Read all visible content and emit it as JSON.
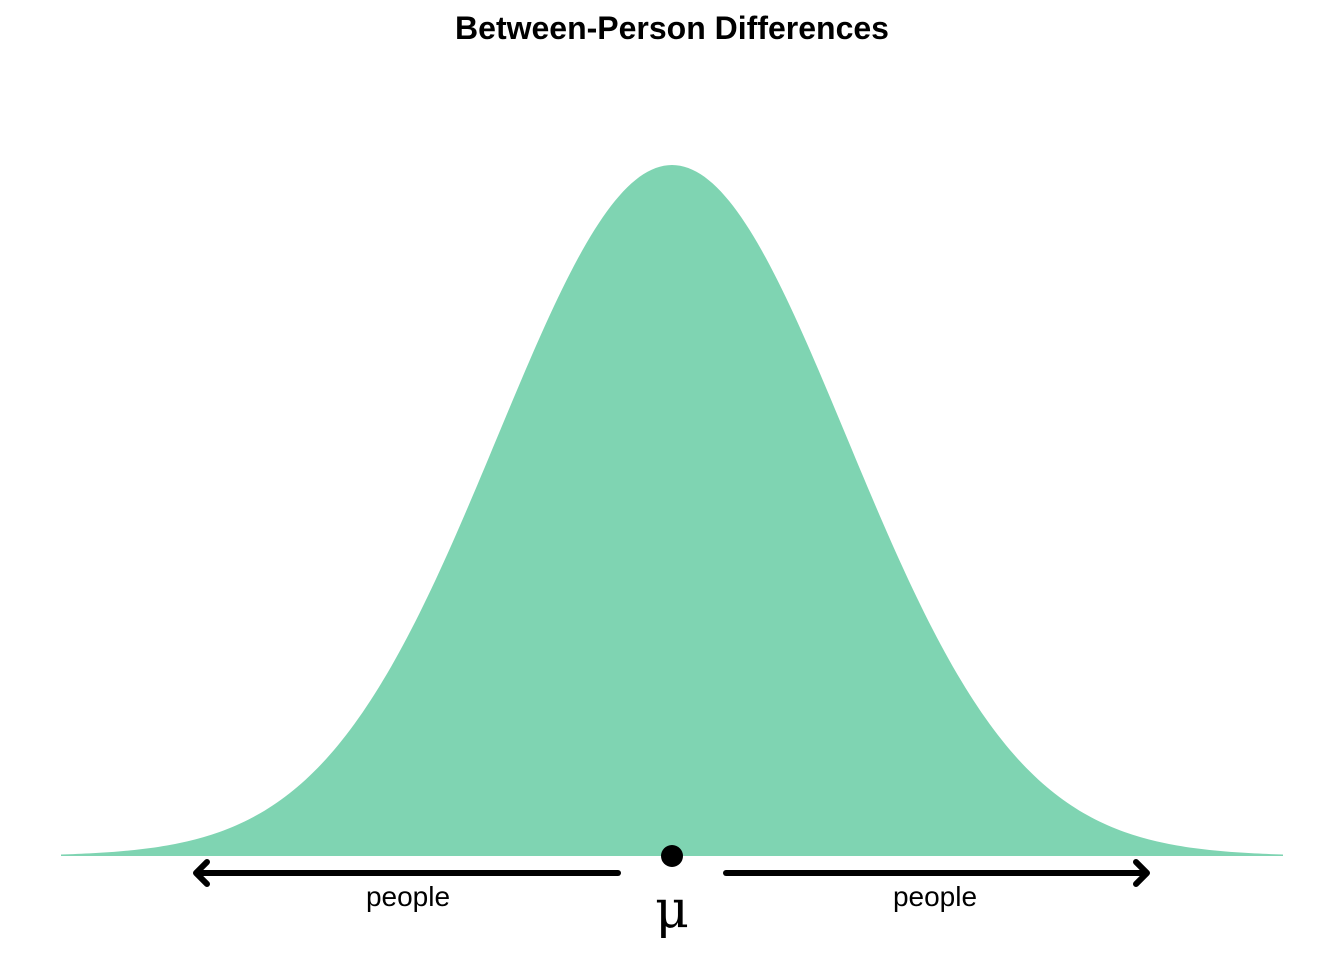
{
  "chart_data": {
    "type": "area",
    "title": "Between-Person Differences",
    "xlabel": "",
    "ylabel": "",
    "distribution": "normal",
    "mean": 0,
    "sd": 1,
    "xlim": [
      -3.5,
      3.5
    ],
    "grid": false,
    "axes_visible": false,
    "fill_color": "#7fd4b2",
    "mean_marker_label": "μ",
    "arrows": [
      {
        "direction": "left",
        "label": "people"
      },
      {
        "direction": "right",
        "label": "people"
      }
    ]
  }
}
